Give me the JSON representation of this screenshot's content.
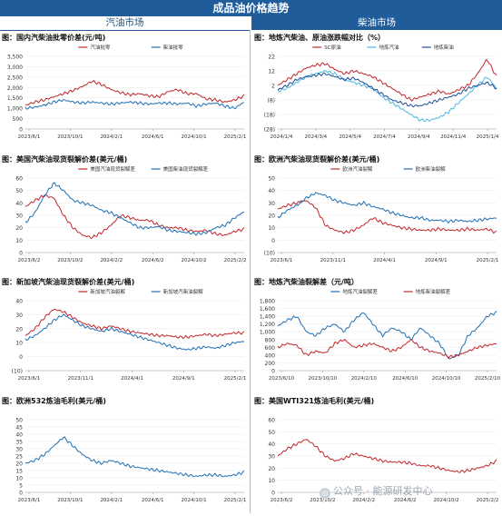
{
  "header": {
    "title": "成品油价格趋势",
    "left_section": "汽油市场",
    "right_section": "柴油市场"
  },
  "watermark": "公众号 · 能源研发中心",
  "chart_data": [
    {
      "id": "c1",
      "type": "line",
      "title": "图：国内汽柴油批零价差(元/吨)",
      "ylim": [
        0,
        3500
      ],
      "yticks": [
        0,
        500,
        1000,
        1500,
        2000,
        2500,
        3000,
        3500
      ],
      "xticks": [
        "2023/6/1",
        "2023/10/1",
        "2024/2/1",
        "2024/6/1",
        "2024/10/1",
        "2025/2/1"
      ],
      "legend_position": "top-center",
      "series": [
        {
          "name": "汽油批零",
          "color": "#c0272d",
          "values": [
            1150,
            1300,
            1400,
            1550,
            1700,
            1850,
            2050,
            2300,
            2150,
            1900,
            1750,
            1650,
            1700,
            1600,
            1550,
            1800,
            1900,
            1700,
            1700,
            1450,
            1400,
            1300,
            1400,
            1600
          ]
        },
        {
          "name": "柴油批零",
          "color": "#1f6fb5",
          "values": [
            1000,
            1050,
            1150,
            1300,
            1400,
            1300,
            1250,
            1300,
            1250,
            1200,
            1250,
            1300,
            1250,
            1200,
            1250,
            1250,
            1200,
            1250,
            1100,
            1200,
            1250,
            1100,
            1000,
            1300
          ]
        }
      ]
    },
    {
      "id": "c2",
      "type": "line",
      "title": "图：地炼汽柴油、原油涨跌幅对比（%）",
      "ylim": [
        -28,
        22
      ],
      "yticks": [
        22,
        12,
        2,
        -8,
        -18,
        -28
      ],
      "xticks": [
        "2024/1/4",
        "2024/3/4",
        "2024/5/4",
        "2024/7/4",
        "2024/9/4",
        "2024/11/4",
        "2025/1/4"
      ],
      "legend_position": "top-center",
      "series": [
        {
          "name": "SC原油",
          "color": "#c0272d",
          "values": [
            2,
            6,
            10,
            14,
            16,
            17,
            13,
            10,
            12,
            10,
            8,
            4,
            0,
            -4,
            -8,
            -6,
            -4,
            -2,
            -4,
            -1,
            2,
            10,
            20,
            8
          ]
        },
        {
          "name": "地炼汽油",
          "color": "#4bb8e0",
          "values": [
            -2,
            0,
            4,
            8,
            10,
            12,
            10,
            6,
            4,
            2,
            0,
            -6,
            -10,
            -14,
            -18,
            -22,
            -22,
            -20,
            -16,
            -10,
            -4,
            2,
            8,
            0
          ]
        },
        {
          "name": "地炼柴油",
          "color": "#1f4e99",
          "values": [
            -1,
            2,
            6,
            8,
            9,
            10,
            8,
            6,
            7,
            4,
            0,
            -4,
            -8,
            -10,
            -12,
            -12,
            -10,
            -8,
            -6,
            -4,
            0,
            2,
            4,
            0
          ]
        }
      ]
    },
    {
      "id": "c3",
      "type": "line",
      "title": "图：美国汽柴油现货裂解价差(美元/桶)",
      "ylim": [
        0,
        60
      ],
      "yticks": [
        0,
        10,
        20,
        30,
        40,
        50,
        60
      ],
      "xticks": [
        "2023/6/2",
        "2023/10/2",
        "2024/2/2",
        "2024/6/2",
        "2024/10/2",
        "2025/2/2"
      ],
      "legend_position": "top-center",
      "series": [
        {
          "name": "美国汽油现货裂解差",
          "color": "#c0272d",
          "values": [
            37,
            42,
            46,
            44,
            30,
            20,
            14,
            12,
            16,
            22,
            30,
            28,
            26,
            26,
            22,
            20,
            20,
            18,
            17,
            18,
            15,
            14,
            17,
            19
          ]
        },
        {
          "name": "美国柴油现货裂解差",
          "color": "#1f6fb5",
          "values": [
            24,
            32,
            46,
            56,
            50,
            42,
            40,
            38,
            34,
            32,
            28,
            24,
            20,
            20,
            21,
            18,
            17,
            16,
            15,
            16,
            20,
            22,
            28,
            33
          ]
        }
      ]
    },
    {
      "id": "c4",
      "type": "line",
      "title": "图：欧洲汽柴油现货裂解价差(美元/桶)",
      "ylim": [
        -10,
        50
      ],
      "yticks": [
        -10,
        0,
        10,
        20,
        30,
        40,
        50
      ],
      "xticks": [
        "2023/6/1",
        "2023/11/1",
        "2024/4/1",
        "2024/9/1",
        "2025/2/1"
      ],
      "legend_position": "top-center",
      "series": [
        {
          "name": "欧洲汽油裂解",
          "color": "#c0272d",
          "values": [
            25,
            28,
            30,
            32,
            26,
            12,
            8,
            6,
            8,
            12,
            18,
            14,
            12,
            10,
            9,
            8,
            8,
            9,
            8,
            8,
            9,
            8,
            9,
            6
          ]
        },
        {
          "name": "欧洲柴油裂解",
          "color": "#1f6fb5",
          "values": [
            18,
            24,
            28,
            34,
            38,
            36,
            32,
            30,
            28,
            30,
            27,
            25,
            22,
            20,
            18,
            18,
            16,
            16,
            15,
            16,
            15,
            16,
            17,
            18
          ]
        }
      ]
    },
    {
      "id": "c5",
      "type": "line",
      "title": "图：新加坡汽柴油现货裂解价差(美元/桶)",
      "ylim": [
        -10,
        40
      ],
      "yticks": [
        -10,
        0,
        10,
        20,
        30,
        40
      ],
      "xticks": [
        "2023/6/1",
        "2023/11/1",
        "2024/4/1",
        "2024/9/1",
        "2025/2/1"
      ],
      "legend_position": "top-center",
      "series": [
        {
          "name": "新加坡汽油裂解",
          "color": "#c0272d",
          "values": [
            15,
            20,
            28,
            34,
            32,
            28,
            24,
            22,
            20,
            22,
            20,
            18,
            17,
            16,
            15,
            15,
            14,
            14,
            15,
            16,
            15,
            16,
            17,
            17
          ]
        },
        {
          "name": "新加坡汽柴油裂解",
          "color": "#1f6fb5",
          "values": [
            12,
            15,
            20,
            26,
            30,
            26,
            22,
            20,
            18,
            20,
            18,
            16,
            14,
            12,
            10,
            8,
            6,
            5,
            6,
            7,
            6,
            8,
            10,
            11
          ]
        }
      ]
    },
    {
      "id": "c6",
      "type": "line",
      "title": "图：地炼汽柴油裂解差（元/吨）",
      "ylim": [
        0,
        1800
      ],
      "yticks": [
        0,
        200,
        400,
        600,
        800,
        1000,
        1200,
        1400,
        1600,
        1800
      ],
      "xticks": [
        "2023/6/10",
        "2023/10/10",
        "2024/2/10",
        "2024/6/10",
        "2024/10/10",
        "2025/2/10"
      ],
      "legend_position": "top-center",
      "series": [
        {
          "name": "地炼汽油裂解差",
          "color": "#1f6fb5",
          "values": [
            1150,
            1300,
            1400,
            1000,
            900,
            1100,
            1200,
            1000,
            1300,
            1500,
            1200,
            900,
            1100,
            1000,
            800,
            1100,
            900,
            700,
            300,
            400,
            900,
            1100,
            1400,
            1500
          ]
        },
        {
          "name": "地炼柴油裂解差",
          "color": "#c0272d",
          "values": [
            600,
            700,
            650,
            400,
            500,
            450,
            700,
            800,
            600,
            650,
            700,
            600,
            500,
            600,
            800,
            600,
            500,
            450,
            350,
            400,
            500,
            600,
            650,
            700
          ]
        }
      ]
    },
    {
      "id": "c7",
      "type": "line",
      "title": "图：欧洲532炼油毛利(美元/桶)",
      "ylim": [
        0,
        50
      ],
      "yticks": [
        0,
        5,
        10,
        15,
        20,
        25,
        30,
        35,
        40,
        45,
        50
      ],
      "xticks": [
        "2023/6/1",
        "2023/10/1",
        "2024/2/1",
        "2024/6/1",
        "2024/10/1",
        "2025/2/1"
      ],
      "series": [
        {
          "name": "",
          "color": "#1f6fb5",
          "values": [
            20,
            22,
            26,
            32,
            38,
            32,
            26,
            22,
            20,
            22,
            20,
            18,
            17,
            16,
            15,
            14,
            13,
            12,
            11,
            12,
            12,
            11,
            12,
            14
          ]
        }
      ]
    },
    {
      "id": "c8",
      "type": "line",
      "title": "图：美国WTI321炼油毛利(美元/桶)",
      "ylim": [
        0,
        60
      ],
      "yticks": [
        0,
        10,
        20,
        30,
        40,
        50,
        60
      ],
      "xticks": [
        "2023/6/2",
        "2023/10/2",
        "2024/2/2",
        "2024/6/2",
        "2024/10/2",
        "2025/2/2"
      ],
      "series": [
        {
          "name": "",
          "color": "#c0272d",
          "values": [
            30,
            36,
            40,
            44,
            38,
            30,
            26,
            28,
            32,
            30,
            28,
            26,
            25,
            25,
            24,
            22,
            22,
            20,
            18,
            17,
            18,
            20,
            22,
            26
          ]
        }
      ]
    }
  ]
}
